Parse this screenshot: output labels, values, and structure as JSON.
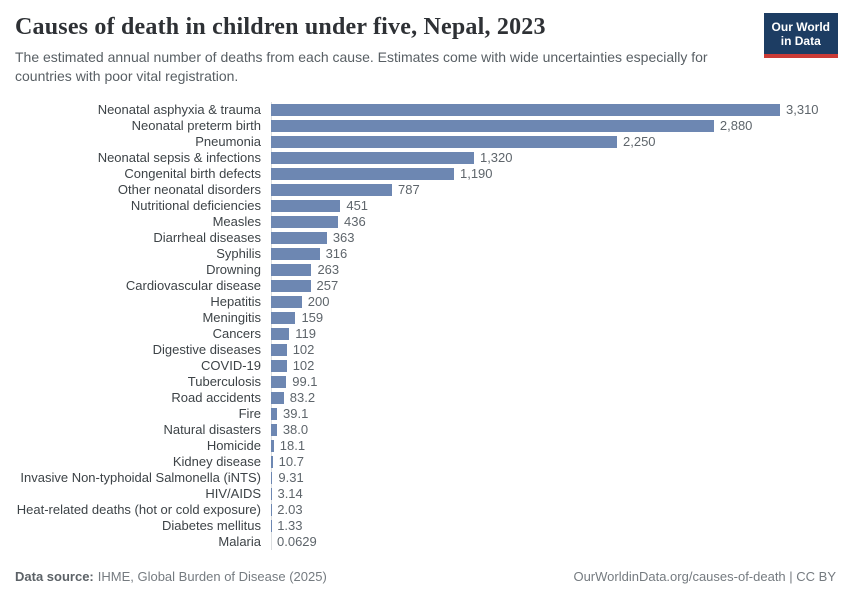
{
  "header": {
    "title": "Causes of death in children under five, Nepal, 2023",
    "subtitle": "The estimated annual number of deaths from each cause. Estimates come with wide uncertainties especially for countries with poor vital registration.",
    "logo": {
      "line1": "Our World",
      "line2": "in Data"
    }
  },
  "chart_data": {
    "type": "bar",
    "orientation": "horizontal",
    "title": "Causes of death in children under five, Nepal, 2023",
    "xlabel": "",
    "ylabel": "",
    "xlim": [
      0,
      3310
    ],
    "grid": false,
    "legend": false,
    "categories": [
      "Neonatal asphyxia & trauma",
      "Neonatal preterm birth",
      "Pneumonia",
      "Neonatal sepsis & infections",
      "Congenital birth defects",
      "Other neonatal disorders",
      "Nutritional deficiencies",
      "Measles",
      "Diarrheal diseases",
      "Syphilis",
      "Drowning",
      "Cardiovascular disease",
      "Hepatitis",
      "Meningitis",
      "Cancers",
      "Digestive diseases",
      "COVID-19",
      "Tuberculosis",
      "Road accidents",
      "Fire",
      "Natural disasters",
      "Homicide",
      "Kidney disease",
      "Invasive Non-typhoidal Salmonella (iNTS)",
      "HIV/AIDS",
      "Heat-related deaths (hot or cold exposure)",
      "Diabetes mellitus",
      "Malaria"
    ],
    "values": [
      3310,
      2880,
      2250,
      1320,
      1190,
      787,
      451,
      436,
      363,
      316,
      263,
      257,
      200,
      159,
      119,
      102,
      102,
      99.1,
      83.2,
      39.1,
      38.0,
      18.1,
      10.7,
      9.31,
      3.14,
      2.03,
      1.33,
      0.0629
    ],
    "value_labels": [
      "3,310",
      "2,880",
      "2,250",
      "1,320",
      "1,190",
      "787",
      "451",
      "436",
      "363",
      "316",
      "263",
      "257",
      "200",
      "159",
      "119",
      "102",
      "102",
      "99.1",
      "83.2",
      "39.1",
      "38.0",
      "18.1",
      "10.7",
      "9.31",
      "3.14",
      "2.03",
      "1.33",
      "0.0629"
    ]
  },
  "footer": {
    "datasource_label": "Data source:",
    "datasource_value": "IHME, Global Burden of Disease (2025)",
    "link": "OurWorldinData.org/causes-of-death | CC BY"
  },
  "colors": {
    "bar": "#6d87b2",
    "logo_background": "#1d3d63",
    "logo_stripe": "#cb3b36",
    "axis_line": "#dbdee0"
  }
}
